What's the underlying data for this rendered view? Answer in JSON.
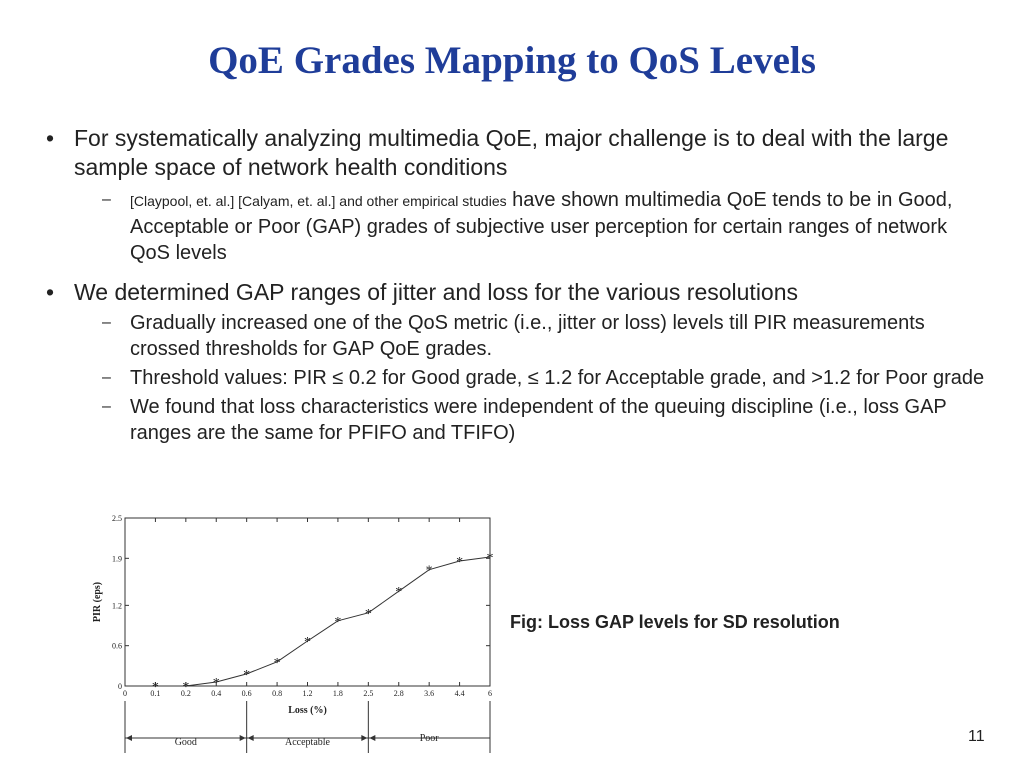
{
  "slide": {
    "title": "QoE Grades Mapping to QoS Levels",
    "page_number": "11",
    "caption": "Fig: Loss GAP levels for SD resolution"
  },
  "bullets": {
    "b1": "For systematically analyzing multimedia QoE, major challenge is to deal with the large sample space of network health conditions",
    "b1_sub1_refs": "[Claypool, et. al.] [Calyam, et. al.]  and other empirical studies",
    "b1_sub1_text": " have shown multimedia QoE tends to be in Good, Acceptable or Poor (GAP) grades of subjective user perception for certain ranges of network QoS levels",
    "b2": "We determined GAP ranges of jitter and loss for the various resolutions",
    "b2_sub1": "Gradually increased one of the QoS metric (i.e., jitter or loss) levels till PIR measurements crossed thresholds for GAP QoE grades.",
    "b2_sub2": "Threshold values: PIR ≤ 0.2 for Good grade, ≤ 1.2 for Acceptable grade, and >1.2 for Poor grade",
    "b2_sub3": "We found that loss characteristics were independent of the queuing discipline (i.e., loss GAP ranges are the same for PFIFO and TFIFO)"
  },
  "markers": {
    "bullet": "•",
    "dash": "–"
  },
  "chart_data": {
    "type": "line",
    "xlabel": "Loss (%)",
    "ylabel": "PIR (eps)",
    "x_ticks": [
      "0",
      "0.1",
      "0.2",
      "0.4",
      "0.6",
      "0.8",
      "1.2",
      "1.8",
      "2.5",
      "2.8",
      "3.6",
      "4.4",
      "6"
    ],
    "y_ticks": [
      "0",
      "0.6",
      "1.2",
      "1.9",
      "2.5"
    ],
    "ylim": [
      0,
      2.5
    ],
    "series": [
      {
        "marker": "star",
        "x": [
          "0.1",
          "0.2",
          "0.4",
          "0.6",
          "0.8",
          "1.2",
          "1.8",
          "2.5",
          "2.8",
          "3.6",
          "4.4",
          "6"
        ],
        "values": [
          0,
          0,
          0.06,
          0.18,
          0.36,
          0.67,
          0.97,
          1.09,
          1.41,
          1.73,
          1.86,
          1.92
        ]
      }
    ],
    "grade_regions": [
      {
        "label": "Good",
        "from": "0",
        "to": "0.6"
      },
      {
        "label": "Acceptable",
        "from": "0.6",
        "to": "2.5"
      },
      {
        "label": "Poor",
        "from": "2.5",
        "to": "6"
      }
    ],
    "grid": false,
    "colors": {
      "line": "#333333",
      "title": "#1f3d99"
    }
  }
}
